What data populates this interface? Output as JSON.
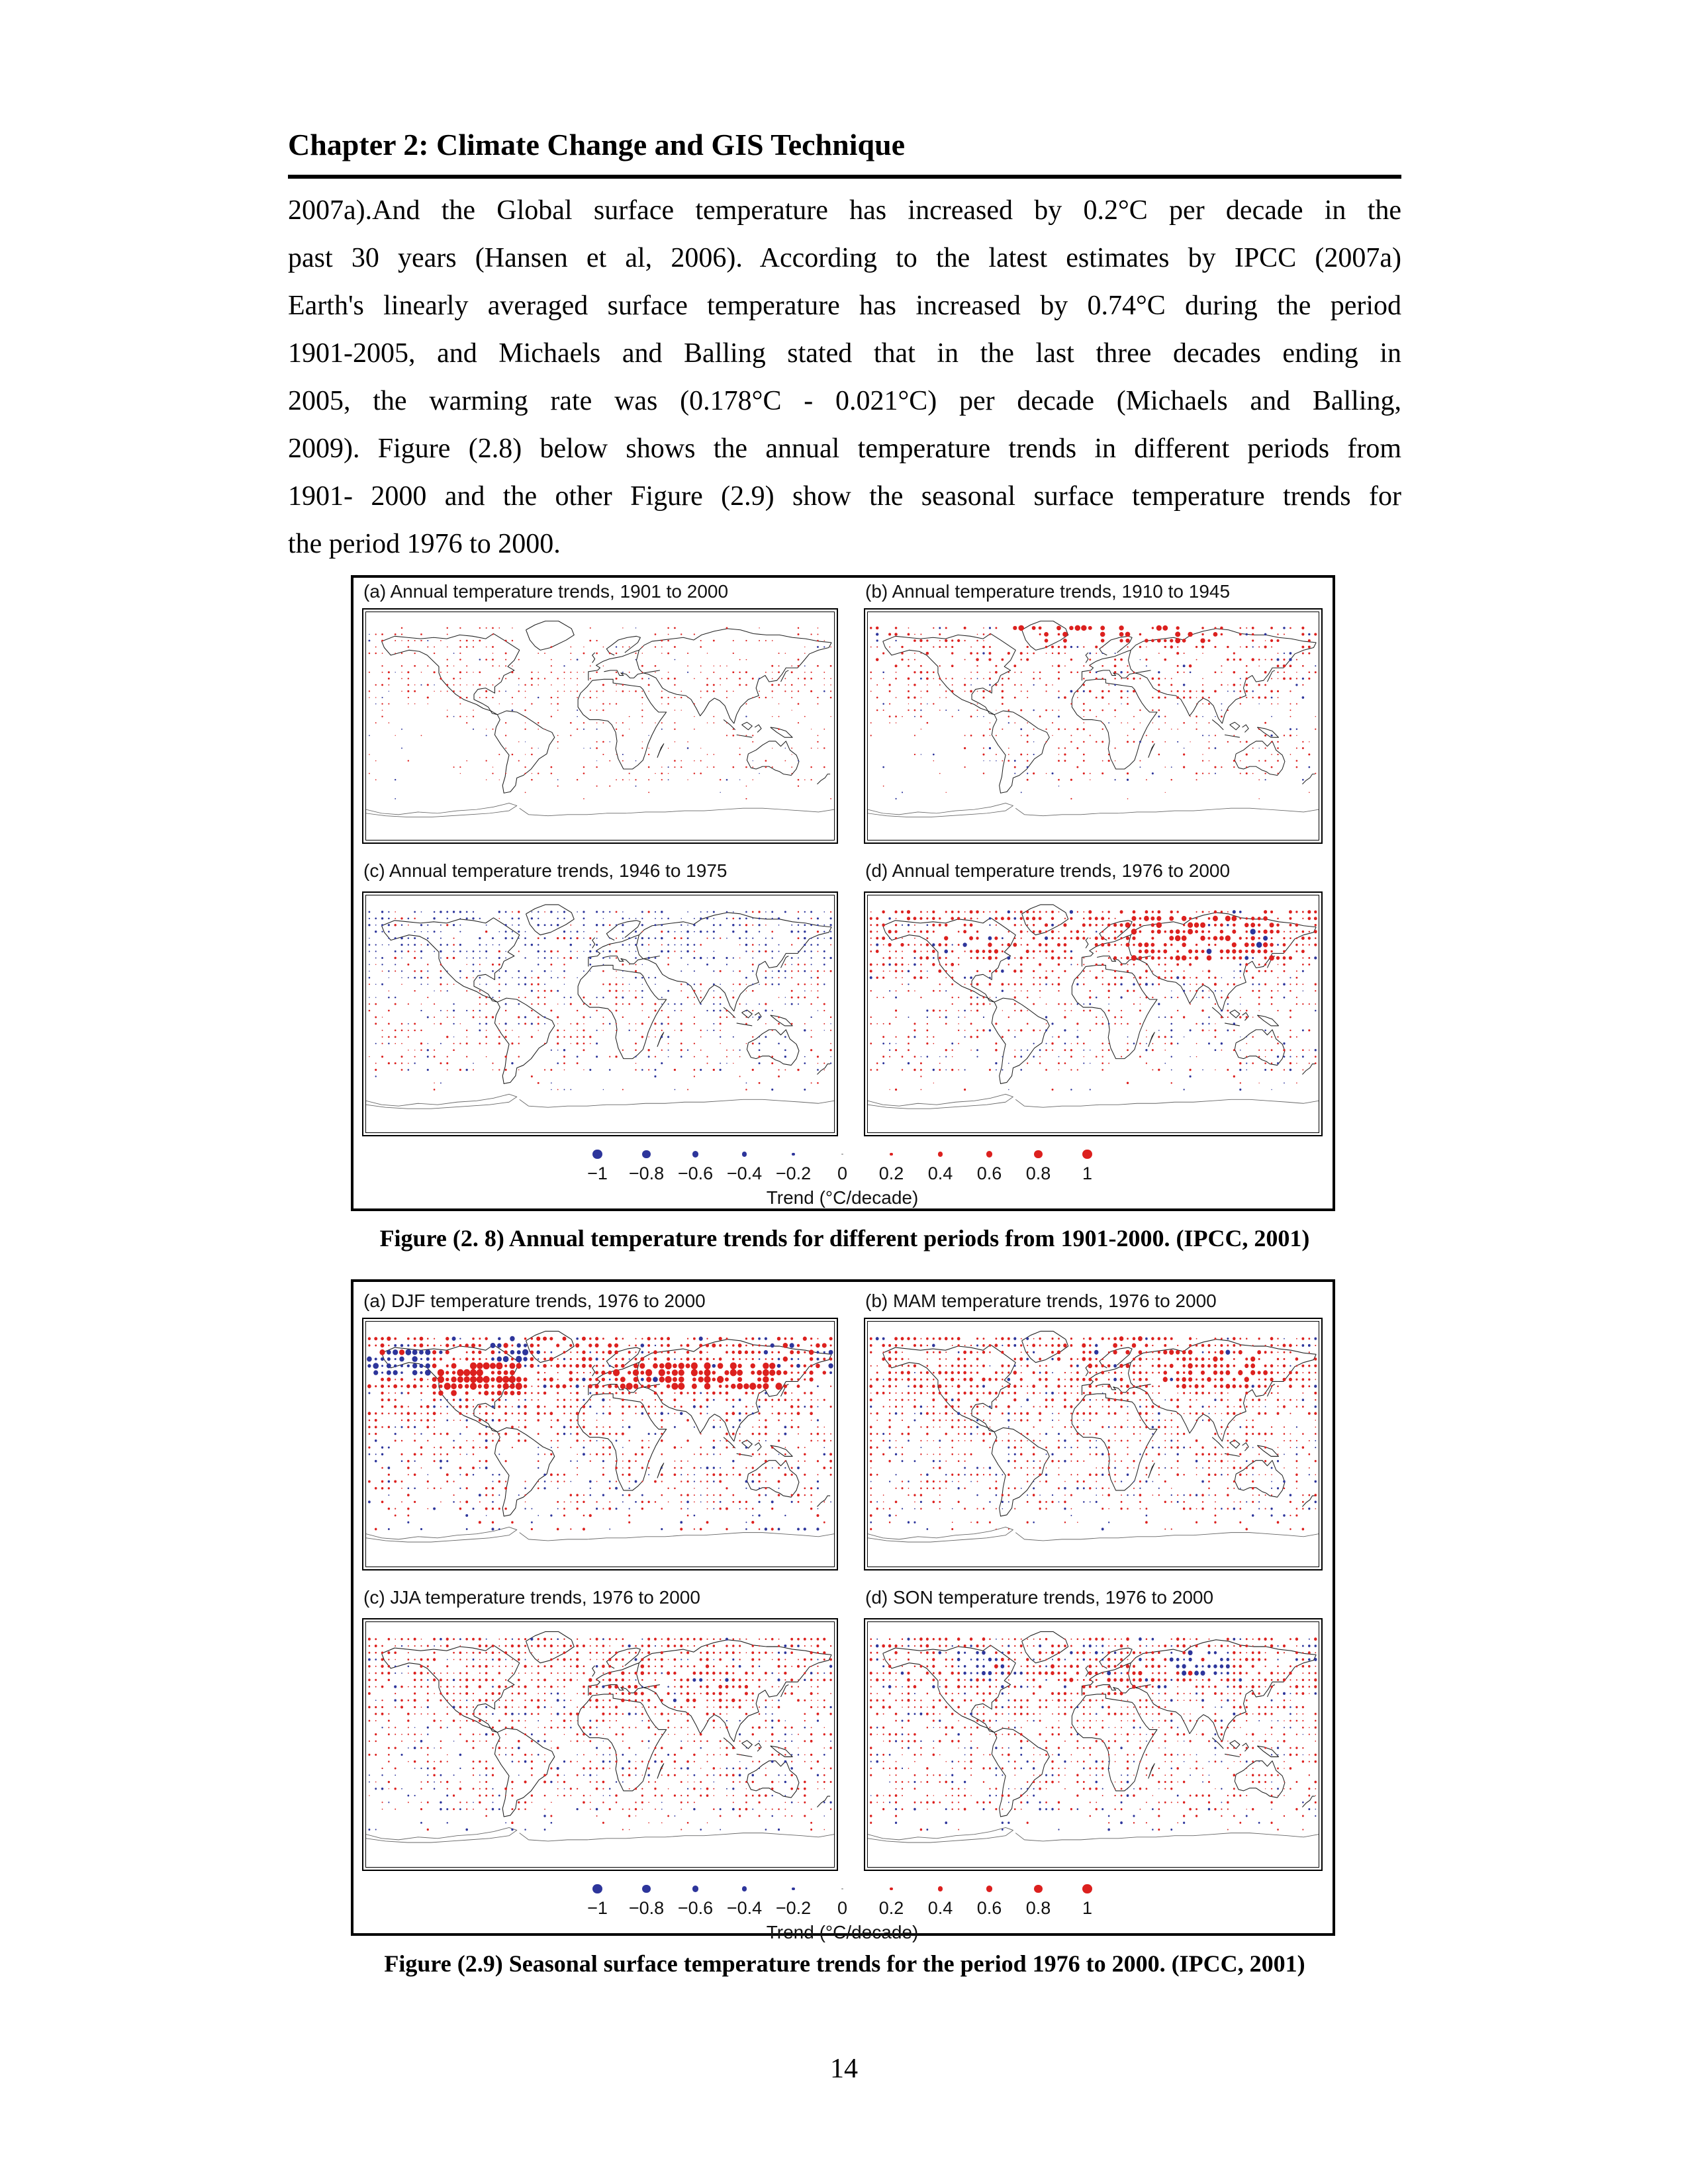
{
  "page": {
    "header": "Chapter 2: Climate Change and GIS Technique",
    "paragraph_lines": [
      "2007a).And the Global surface temperature has increased by 0.2°C per decade in the",
      "past 30 years (Hansen et al, 2006). According to the latest estimates by IPCC (2007a)",
      "Earth's linearly averaged surface temperature has increased by 0.74°C during the period",
      "1901-2005, and Michaels and Balling stated that in the last three decades ending in",
      "2005, the warming rate was (0.178°C - 0.021°C) per decade (Michaels and Balling,",
      "2009). Figure (2.8) below shows the annual temperature trends in different periods from",
      "1901- 2000 and the other Figure (2.9) show the seasonal surface temperature trends for",
      "the period 1976 to 2000."
    ],
    "page_number": "14"
  },
  "figure_2_8": {
    "caption": "Figure (2. 8) Annual temperature trends for different periods from 1901-2000. (IPCC, 2001)"
  },
  "figure_2_9": {
    "caption": "Figure (2.9) Seasonal surface temperature trends for the period 1976 to 2000. (IPCC, 2001)"
  },
  "chart_data": [
    {
      "type": "scatter",
      "subtype": "dot-density-world-map",
      "figure": "2.8",
      "title": "Annual temperature trends for different periods from 1901-2000",
      "source": "IPCC, 2001",
      "units": "°C/decade",
      "positive_color": "#dc201e",
      "negative_color": "#2d359b",
      "zero_color": "#aaaaaa",
      "grid_spacing_degrees": 5,
      "legend": {
        "label": "Trend (°C/decade)",
        "values": [
          {
            "value": -1,
            "label": "−1"
          },
          {
            "value": -0.8,
            "label": "−0.8"
          },
          {
            "value": -0.6,
            "label": "−0.6"
          },
          {
            "value": -0.4,
            "label": "−0.4"
          },
          {
            "value": -0.2,
            "label": "−0.2"
          },
          {
            "value": 0,
            "label": "0"
          },
          {
            "value": 0.2,
            "label": "0.2"
          },
          {
            "value": 0.4,
            "label": "0.4"
          },
          {
            "value": 0.6,
            "label": "0.6"
          },
          {
            "value": 0.8,
            "label": "0.8"
          },
          {
            "value": 1,
            "label": "1"
          }
        ]
      },
      "panels": [
        {
          "id": "a",
          "title": "(a) Annual temperature trends, 1901 to 2000",
          "period": "1901 to 2000",
          "seed": 7,
          "bands": [
            [
              45,
              80,
              0.4,
              0.92,
              0.35,
              0.75
            ],
            [
              20,
              45,
              0.55,
              0.9,
              0.35,
              0.8
            ],
            [
              0,
              20,
              0.3,
              0.85,
              0.3,
              0.7
            ],
            [
              -45,
              0,
              0.28,
              0.82,
              0.3,
              0.7
            ],
            [
              -62,
              -45,
              0.06,
              0.7,
              0.3,
              0.6
            ]
          ],
          "zones": [
            [
              -170,
              -90,
              -55,
              5,
              0.45,
              null,
              1
            ],
            [
              -60,
              -10,
              60,
              85,
              0.15,
              null,
              1
            ],
            [
              60,
              180,
              50,
              80,
              0.6,
              null,
              1
            ]
          ]
        },
        {
          "id": "b",
          "title": "(b) Annual temperature trends, 1910 to 1945",
          "period": "1910 to 1945",
          "seed": 21,
          "bands": [
            [
              45,
              82,
              0.45,
              0.9,
              0.4,
              1.2
            ],
            [
              20,
              45,
              0.55,
              0.85,
              0.4,
              1.0
            ],
            [
              0,
              20,
              0.35,
              0.8,
              0.35,
              0.8
            ],
            [
              -45,
              0,
              0.32,
              0.8,
              0.35,
              0.85
            ],
            [
              -62,
              -45,
              0.05,
              0.7,
              0.3,
              0.6
            ]
          ],
          "zones": [
            [
              -75,
              110,
              63,
              85,
              0.9,
              0.97,
              1.9
            ],
            [
              15,
              60,
              42,
              58,
              1.0,
              0.55,
              0.9
            ],
            [
              -170,
              -90,
              -55,
              0,
              0.4,
              null,
              1
            ]
          ]
        },
        {
          "id": "c",
          "title": "(c) Annual temperature trends, 1946 to 1975",
          "period": "1946 to 1975",
          "seed": 33,
          "bands": [
            [
              40,
              80,
              0.7,
              0.18,
              0.4,
              0.9
            ],
            [
              20,
              40,
              0.6,
              0.45,
              0.35,
              0.8
            ],
            [
              0,
              20,
              0.45,
              0.6,
              0.35,
              0.8
            ],
            [
              -45,
              0,
              0.45,
              0.75,
              0.35,
              0.85
            ],
            [
              -62,
              -45,
              0.08,
              0.6,
              0.35,
              0.8
            ]
          ],
          "zones": [
            [
              -80,
              40,
              -30,
              10,
              1.0,
              0.8,
              1.0
            ],
            [
              120,
              180,
              -40,
              -10,
              0.9,
              0.55,
              1
            ]
          ]
        },
        {
          "id": "d",
          "title": "(d) Annual temperature trends, 1976 to 2000",
          "period": "1976 to 2000",
          "seed": 55,
          "bands": [
            [
              40,
              80,
              0.75,
              0.9,
              0.45,
              1.4
            ],
            [
              20,
              40,
              0.6,
              0.85,
              0.4,
              1.1
            ],
            [
              0,
              20,
              0.5,
              0.8,
              0.35,
              0.9
            ],
            [
              -45,
              0,
              0.45,
              0.65,
              0.35,
              0.9
            ],
            [
              -62,
              -45,
              0.12,
              0.55,
              0.35,
              0.9
            ]
          ],
          "zones": [
            [
              25,
              145,
              42,
              75,
              1.0,
              0.96,
              1.6
            ],
            [
              -130,
              -60,
              30,
              70,
              1.0,
              0.9,
              1.2
            ],
            [
              -120,
              -40,
              -55,
              -15,
              0.9,
              0.5,
              1.0
            ]
          ]
        }
      ]
    },
    {
      "type": "scatter",
      "subtype": "dot-density-world-map",
      "figure": "2.9",
      "title": "Seasonal surface temperature trends for the period 1976 to 2000",
      "source": "IPCC, 2001",
      "units": "°C/decade",
      "positive_color": "#dc201e",
      "negative_color": "#2d359b",
      "zero_color": "#aaaaaa",
      "grid_spacing_degrees": 5,
      "legend": {
        "label": "Trend (°C/decade)",
        "values": [
          {
            "value": -1,
            "label": "−1"
          },
          {
            "value": -0.8,
            "label": "−0.8"
          },
          {
            "value": -0.6,
            "label": "−0.6"
          },
          {
            "value": -0.4,
            "label": "−0.4"
          },
          {
            "value": -0.2,
            "label": "−0.2"
          },
          {
            "value": 0,
            "label": "0"
          },
          {
            "value": 0.2,
            "label": "0.2"
          },
          {
            "value": 0.4,
            "label": "0.4"
          },
          {
            "value": 0.6,
            "label": "0.6"
          },
          {
            "value": 0.8,
            "label": "0.8"
          },
          {
            "value": 1,
            "label": "1"
          }
        ]
      },
      "panels": [
        {
          "id": "a",
          "title": "(a) DJF temperature trends, 1976 to 2000",
          "season": "DJF",
          "seed": 71,
          "bands": [
            [
              40,
              80,
              0.85,
              0.88,
              0.5,
              1.6
            ],
            [
              20,
              40,
              0.75,
              0.85,
              0.45,
              1.2
            ],
            [
              0,
              20,
              0.6,
              0.8,
              0.4,
              1.0
            ],
            [
              -50,
              0,
              0.55,
              0.72,
              0.4,
              1.0
            ],
            [
              -64,
              -50,
              0.25,
              0.55,
              0.4,
              1.1
            ]
          ],
          "zones": [
            [
              -130,
              -62,
              34,
              58,
              1.0,
              0.98,
              2.0
            ],
            [
              12,
              140,
              40,
              62,
              1.0,
              0.98,
              2.0
            ],
            [
              -178,
              -132,
              48,
              70,
              1.0,
              0.15,
              1.4
            ],
            [
              -85,
              -55,
              58,
              78,
              1.0,
              0.2,
              1.5
            ],
            [
              135,
              180,
              55,
              75,
              0.9,
              0.5,
              1.2
            ]
          ]
        },
        {
          "id": "b",
          "title": "(b) MAM temperature trends, 1976 to 2000",
          "season": "MAM",
          "seed": 83,
          "bands": [
            [
              40,
              80,
              0.8,
              0.88,
              0.45,
              1.3
            ],
            [
              20,
              40,
              0.7,
              0.85,
              0.4,
              1.1
            ],
            [
              0,
              20,
              0.6,
              0.82,
              0.4,
              0.95
            ],
            [
              -50,
              0,
              0.55,
              0.75,
              0.4,
              0.95
            ],
            [
              -64,
              -50,
              0.2,
              0.6,
              0.4,
              1.0
            ]
          ],
          "zones": [
            [
              55,
              145,
              42,
              72,
              1.0,
              0.95,
              1.5
            ],
            [
              -135,
              -60,
              28,
              55,
              1.0,
              0.92,
              1.2
            ],
            [
              -30,
              40,
              55,
              80,
              0.9,
              0.9,
              1.4
            ]
          ]
        },
        {
          "id": "c",
          "title": "(c) JJA temperature trends, 1976 to 2000",
          "season": "JJA",
          "seed": 95,
          "bands": [
            [
              40,
              80,
              0.8,
              0.9,
              0.4,
              1.1
            ],
            [
              20,
              40,
              0.72,
              0.86,
              0.4,
              1.05
            ],
            [
              0,
              20,
              0.6,
              0.82,
              0.35,
              0.95
            ],
            [
              -50,
              0,
              0.55,
              0.75,
              0.35,
              0.95
            ],
            [
              -64,
              -50,
              0.18,
              0.6,
              0.35,
              0.9
            ]
          ],
          "zones": [
            [
              -10,
              120,
              32,
              62,
              1.0,
              0.94,
              1.3
            ],
            [
              -80,
              -30,
              -35,
              0,
              0.95,
              0.85,
              1.1
            ]
          ]
        },
        {
          "id": "d",
          "title": "(d) SON temperature trends, 1976 to 2000",
          "season": "SON",
          "seed": 107,
          "bands": [
            [
              40,
              80,
              0.8,
              0.82,
              0.45,
              1.25
            ],
            [
              20,
              40,
              0.7,
              0.84,
              0.4,
              1.05
            ],
            [
              0,
              20,
              0.6,
              0.8,
              0.35,
              0.95
            ],
            [
              -50,
              0,
              0.55,
              0.72,
              0.35,
              0.95
            ],
            [
              -64,
              -50,
              0.2,
              0.55,
              0.4,
              1.0
            ]
          ],
          "zones": [
            [
              58,
              112,
              48,
              72,
              1.0,
              0.08,
              1.5
            ],
            [
              -108,
              -68,
              50,
              72,
              1.0,
              0.3,
              1.3
            ],
            [
              -40,
              50,
              35,
              60,
              1.0,
              0.92,
              1.3
            ]
          ]
        }
      ]
    }
  ]
}
